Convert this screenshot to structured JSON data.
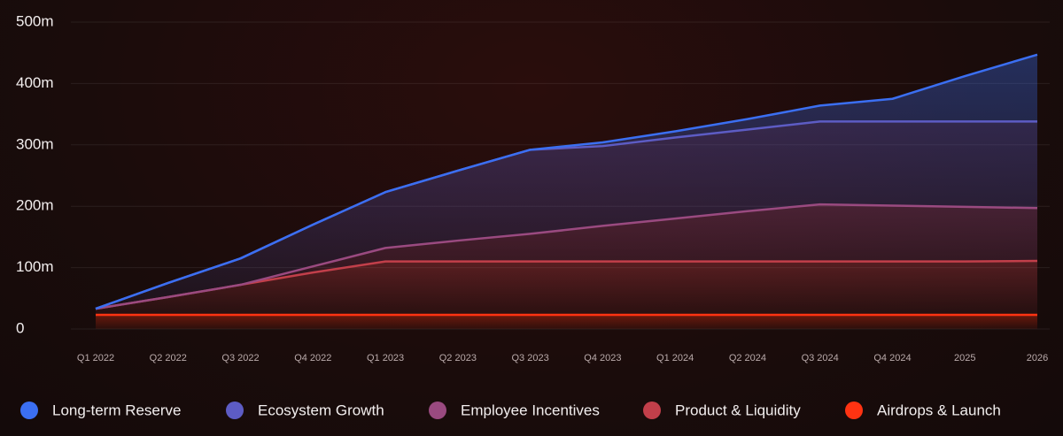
{
  "chart_data": {
    "type": "stacked-area",
    "categories": [
      "Q1 2022",
      "Q2 2022",
      "Q3 2022",
      "Q4 2022",
      "Q1 2023",
      "Q2 2023",
      "Q3 2023",
      "Q4 2023",
      "Q1 2024",
      "Q2 2024",
      "Q3 2024",
      "Q4 2024",
      "2025",
      "2026"
    ],
    "ylim": [
      0,
      500
    ],
    "yticks": [
      0,
      {
        "value": 100,
        "label": "100m"
      },
      {
        "value": 200,
        "label": "200m"
      },
      {
        "value": 300,
        "label": "300m"
      },
      {
        "value": 400,
        "label": "400m"
      },
      {
        "value": 500,
        "label": "500m"
      }
    ],
    "grid": true,
    "legend": "bottom",
    "series": [
      {
        "name": "Long-term Reserve",
        "color": "#3b6ff2",
        "values": [
          0,
          0,
          0,
          0,
          0,
          0,
          0,
          6,
          10,
          17,
          26,
          37,
          74,
          109
        ]
      },
      {
        "name": "Ecosystem Growth",
        "color": "#5d5cc4",
        "values": [
          0,
          23,
          43,
          68,
          91,
          114,
          137,
          130,
          132,
          133,
          135,
          137,
          139,
          141
        ]
      },
      {
        "name": "Employee Incentives",
        "color": "#9a4a80",
        "values": [
          0,
          0,
          0,
          10,
          22,
          34,
          45,
          58,
          70,
          82,
          93,
          91,
          89,
          86
        ]
      },
      {
        "name": "Product & Liquidity",
        "color": "#c23f4a",
        "values": [
          10,
          29,
          49,
          69,
          87,
          87,
          87,
          87,
          87,
          87,
          87,
          87,
          87,
          88
        ]
      },
      {
        "name": "Airdrops & Launch",
        "color": "#ff3312",
        "values": [
          23,
          23,
          23,
          23,
          23,
          23,
          23,
          23,
          23,
          23,
          23,
          23,
          23,
          23
        ]
      }
    ]
  }
}
